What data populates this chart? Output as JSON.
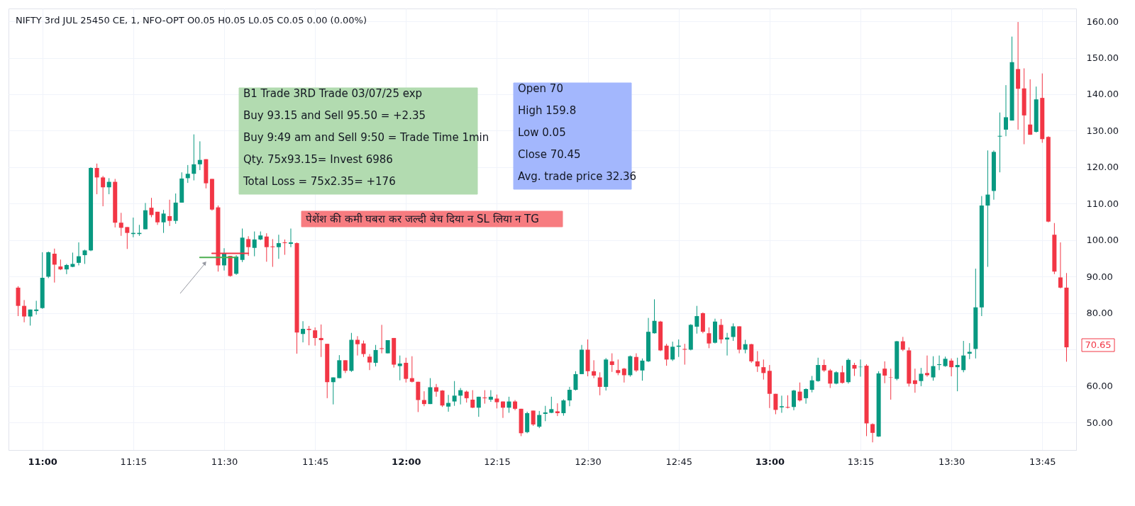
{
  "chart_data": {
    "type": "candlestick",
    "title": "NIFTY 3rd JUL 25450 CE, 1, NFO-OPT  O0.05 H0.05 L0.05 C0.05 0.00 (0.00%)",
    "x": [
      "--07-03T10:56",
      "--07-03T10:57",
      "--07-03T10:58",
      "--07-03T10:59",
      "--07-03T11:00",
      "--07-03T11:01",
      "--07-03T11:02",
      "--07-03T11:03",
      "--07-03T11:04",
      "--07-03T11:05",
      "--07-03T11:06",
      "--07-03T11:07",
      "--07-03T11:08",
      "--07-03T11:09",
      "--07-03T11:10",
      "--07-03T11:11",
      "--07-03T11:12",
      "--07-03T11:13",
      "--07-03T11:14",
      "--07-03T11:15",
      "--07-03T11:16",
      "--07-03T11:17",
      "--07-03T11:18",
      "--07-03T11:19",
      "--07-03T11:20",
      "--07-03T11:21",
      "--07-03T11:22",
      "--07-03T11:23",
      "--07-03T11:24",
      "--07-03T11:25",
      "--07-03T11:26",
      "--07-03T11:27",
      "--07-03T11:28",
      "--07-03T11:29",
      "--07-03T11:30",
      "--07-03T11:31",
      "--07-03T11:32",
      "--07-03T11:33",
      "--07-03T11:34",
      "--07-03T11:35",
      "--07-03T11:36",
      "--07-03T11:37",
      "--07-03T11:38",
      "--07-03T11:39",
      "--07-03T11:40",
      "--07-03T11:41",
      "--07-03T11:42",
      "--07-03T11:43",
      "--07-03T11:44",
      "--07-03T11:45",
      "--07-03T11:46",
      "--07-03T11:47",
      "--07-03T11:48",
      "--07-03T11:49",
      "--07-03T11:50",
      "--07-03T11:51",
      "--07-03T11:52",
      "--07-03T11:53",
      "--07-03T11:54",
      "--07-03T11:55",
      "--07-03T11:56",
      "--07-03T11:57",
      "--07-03T11:58",
      "--07-03T11:59",
      "--07-03T12:00",
      "--07-03T12:01",
      "--07-03T12:02",
      "--07-03T12:03",
      "--07-03T12:04",
      "--07-03T12:05",
      "--07-03T12:06",
      "--07-03T12:07",
      "--07-03T12:08",
      "--07-03T12:09",
      "--07-03T12:10",
      "--07-03T12:11",
      "--07-03T12:12",
      "--07-03T12:13",
      "--07-03T12:14",
      "--07-03T12:15",
      "--07-03T12:16",
      "--07-03T12:17",
      "--07-03T12:18",
      "--07-03T12:19",
      "--07-03T12:20",
      "--07-03T12:21",
      "--07-03T12:22",
      "--07-03T12:23",
      "--07-03T12:24",
      "--07-03T12:25",
      "--07-03T12:26",
      "--07-03T12:27",
      "--07-03T12:28",
      "--07-03T12:29",
      "--07-03T12:30",
      "--07-03T12:31",
      "--07-03T12:32",
      "--07-03T12:33",
      "--07-03T12:34",
      "--07-03T12:35",
      "--07-03T12:36",
      "--07-03T12:37",
      "--07-03T12:38",
      "--07-03T12:39",
      "--07-03T12:40",
      "--07-03T12:41",
      "--07-03T12:42",
      "--07-03T12:43",
      "--07-03T12:44",
      "--07-03T12:45",
      "--07-03T12:46",
      "--07-03T12:47",
      "--07-03T12:48",
      "--07-03T12:49",
      "--07-03T12:50",
      "--07-03T12:51",
      "--07-03T12:52",
      "--07-03T12:53",
      "--07-03T12:54",
      "--07-03T12:55",
      "--07-03T12:56",
      "--07-03T12:57",
      "--07-03T12:58",
      "--07-03T12:59",
      "--07-03T13:00",
      "--07-03T13:01",
      "--07-03T13:02",
      "--07-03T13:03",
      "--07-03T13:04",
      "--07-03T13:05",
      "--07-03T13:06",
      "--07-03T13:07",
      "--07-03T13:08",
      "--07-03T13:09",
      "--07-03T13:10",
      "--07-03T13:11",
      "--07-03T13:12",
      "--07-03T13:13",
      "--07-03T13:14",
      "--07-03T13:15",
      "--07-03T13:16",
      "--07-03T13:17",
      "--07-03T13:18",
      "--07-03T13:19",
      "--07-03T13:20",
      "--07-03T13:21",
      "--07-03T13:22",
      "--07-03T13:23",
      "--07-03T13:24",
      "--07-03T13:25",
      "--07-03T13:26",
      "--07-03T13:27",
      "--07-03T13:28",
      "--07-03T13:29",
      "--07-03T13:30",
      "--07-03T13:31",
      "--07-03T13:32",
      "--07-03T13:33",
      "--07-03T13:34",
      "--07-03T13:35",
      "--07-03T13:36",
      "--07-03T13:37",
      "--07-03T13:38",
      "--07-03T13:39",
      "--07-03T13:40",
      "--07-03T13:41",
      "--07-03T13:42",
      "--07-03T13:43",
      "--07-03T13:44",
      "--07-03T13:45",
      "--07-03T13:46",
      "--07-03T13:47",
      "--07-03T13:48",
      "--07-03T13:49"
    ],
    "ohlc": [
      [
        87.0,
        87.4,
        79.2,
        82.0
      ],
      [
        82.0,
        83.6,
        77.5,
        79.1
      ],
      [
        79.1,
        81.0,
        76.6,
        81.0
      ],
      [
        80.6,
        83.4,
        79.6,
        81.0
      ],
      [
        81.4,
        96.7,
        81.2,
        89.7
      ],
      [
        90.0,
        96.9,
        89.6,
        96.7
      ],
      [
        96.3,
        97.7,
        88.4,
        93.3
      ],
      [
        92.8,
        94.7,
        91.8,
        92.0
      ],
      [
        92.0,
        93.5,
        90.7,
        93.2
      ],
      [
        92.7,
        96.6,
        92.6,
        93.5
      ],
      [
        93.8,
        99.4,
        93.1,
        95.6
      ],
      [
        95.9,
        97.4,
        93.5,
        97.2
      ],
      [
        97.2,
        120.0,
        97.0,
        119.8
      ],
      [
        119.8,
        121.0,
        112.6,
        117.2
      ],
      [
        117.2,
        117.6,
        109.3,
        114.5
      ],
      [
        114.5,
        117.0,
        112.6,
        116.0
      ],
      [
        116.0,
        116.8,
        103.5,
        104.8
      ],
      [
        104.8,
        107.5,
        101.2,
        103.4
      ],
      [
        103.6,
        103.6,
        97.6,
        102.0
      ],
      [
        101.7,
        106.2,
        100.8,
        102.0
      ],
      [
        101.7,
        104.2,
        101.2,
        102.0
      ],
      [
        103.0,
        110.2,
        103.0,
        108.2
      ],
      [
        108.9,
        111.6,
        106.3,
        106.9
      ],
      [
        107.8,
        107.8,
        104.2,
        104.9
      ],
      [
        104.9,
        108.3,
        102.0,
        107.3
      ],
      [
        106.6,
        111.1,
        103.9,
        105.3
      ],
      [
        105.3,
        112.8,
        104.5,
        110.3
      ],
      [
        110.3,
        118.6,
        110.3,
        116.9
      ],
      [
        117.0,
        120.6,
        115.7,
        118.2
      ],
      [
        118.2,
        129.0,
        116.4,
        120.8
      ],
      [
        120.8,
        127.1,
        119.2,
        122.0
      ],
      [
        122.2,
        122.2,
        114.2,
        115.6
      ],
      [
        116.8,
        116.8,
        108.1,
        108.4
      ],
      [
        109.0,
        109.5,
        91.4,
        93.1
      ],
      [
        93.1,
        97.8,
        91.7,
        96.5
      ],
      [
        95.7,
        95.7,
        90.0,
        90.2
      ],
      [
        90.8,
        95.9,
        90.5,
        95.5
      ],
      [
        94.6,
        103.2,
        94.0,
        100.7
      ],
      [
        100.3,
        101.1,
        95.7,
        98.1
      ],
      [
        97.9,
        102.4,
        95.6,
        100.2
      ],
      [
        100.2,
        102.4,
        100.0,
        101.3
      ],
      [
        101.0,
        101.9,
        94.1,
        98.1
      ],
      [
        98.3,
        100.3,
        92.7,
        98.1
      ],
      [
        98.1,
        101.5,
        94.9,
        99.2
      ],
      [
        99.4,
        100.2,
        96.0,
        99.2
      ],
      [
        99.0,
        103.2,
        98.1,
        99.4
      ],
      [
        99.2,
        99.4,
        68.9,
        74.7
      ],
      [
        74.3,
        77.8,
        72.0,
        75.7
      ],
      [
        75.7,
        76.5,
        71.2,
        75.4
      ],
      [
        75.3,
        76.1,
        71.1,
        73.2
      ],
      [
        73.2,
        76.9,
        68.0,
        72.6
      ],
      [
        71.6,
        71.6,
        56.7,
        61.1
      ],
      [
        61.1,
        62.4,
        55.0,
        62.4
      ],
      [
        62.2,
        68.5,
        62.2,
        67.1
      ],
      [
        67.1,
        67.1,
        63.6,
        64.2
      ],
      [
        64.2,
        74.6,
        63.9,
        72.7
      ],
      [
        72.7,
        73.7,
        68.4,
        71.5
      ],
      [
        71.7,
        72.5,
        68.0,
        68.8
      ],
      [
        68.1,
        68.8,
        64.4,
        66.5
      ],
      [
        66.4,
        71.3,
        65.4,
        69.9
      ],
      [
        70.4,
        76.8,
        69.0,
        70.2
      ],
      [
        69.0,
        72.6,
        69.0,
        72.6
      ],
      [
        73.2,
        73.2,
        65.1,
        65.9
      ],
      [
        65.5,
        68.4,
        61.6,
        66.2
      ],
      [
        66.4,
        67.8,
        61.0,
        62.0
      ],
      [
        62.2,
        68.2,
        61.0,
        61.2
      ],
      [
        61.2,
        61.2,
        52.9,
        56.2
      ],
      [
        56.2,
        58.6,
        54.5,
        55.1
      ],
      [
        55.1,
        62.2,
        55.1,
        59.7
      ],
      [
        59.7,
        60.6,
        57.1,
        58.5
      ],
      [
        58.8,
        58.9,
        54.3,
        54.7
      ],
      [
        54.4,
        57.6,
        53.0,
        55.4
      ],
      [
        55.8,
        61.4,
        54.6,
        57.4
      ],
      [
        57.4,
        59.5,
        55.0,
        58.9
      ],
      [
        58.5,
        58.8,
        55.5,
        56.7
      ],
      [
        56.3,
        58.9,
        54.0,
        54.1
      ],
      [
        54.1,
        57.1,
        51.6,
        57.1
      ],
      [
        56.9,
        58.9,
        55.2,
        56.7
      ],
      [
        56.3,
        58.9,
        55.7,
        57.1
      ],
      [
        56.6,
        57.7,
        53.9,
        55.6
      ],
      [
        55.8,
        55.8,
        51.3,
        54.1
      ],
      [
        54.1,
        57.1,
        52.7,
        55.8
      ],
      [
        55.8,
        56.2,
        53.4,
        53.8
      ],
      [
        53.8,
        53.8,
        46.3,
        47.1
      ],
      [
        47.4,
        53.0,
        47.1,
        52.6
      ],
      [
        53.3,
        53.3,
        49.1,
        49.5
      ],
      [
        48.9,
        53.2,
        48.5,
        52.1
      ],
      [
        52.4,
        54.6,
        50.4,
        52.8
      ],
      [
        52.7,
        57.1,
        52.6,
        53.7
      ],
      [
        53.1,
        55.3,
        51.8,
        52.6
      ],
      [
        52.6,
        56.4,
        51.9,
        56.1
      ],
      [
        56.1,
        59.8,
        54.5,
        59.0
      ],
      [
        59.0,
        64.1,
        58.8,
        63.3
      ],
      [
        63.3,
        71.3,
        63.3,
        70.0
      ],
      [
        70.0,
        72.8,
        62.7,
        64.1
      ],
      [
        64.1,
        67.1,
        62.2,
        62.9
      ],
      [
        62.4,
        63.8,
        57.5,
        59.8
      ],
      [
        59.8,
        67.7,
        58.8,
        67.3
      ],
      [
        66.8,
        69.0,
        63.9,
        65.8
      ],
      [
        64.4,
        67.3,
        63.0,
        63.6
      ],
      [
        64.8,
        65.0,
        61.0,
        63.0
      ],
      [
        63.0,
        68.4,
        62.6,
        68.2
      ],
      [
        68.0,
        69.0,
        63.9,
        64.3
      ],
      [
        64.3,
        67.6,
        61.5,
        67.0
      ],
      [
        66.8,
        78.7,
        66.6,
        74.9
      ],
      [
        74.5,
        83.8,
        74.4,
        77.9
      ],
      [
        77.7,
        77.9,
        69.6,
        69.8
      ],
      [
        71.1,
        71.6,
        65.6,
        67.3
      ],
      [
        67.3,
        72.2,
        66.9,
        70.8
      ],
      [
        70.8,
        72.8,
        68.0,
        71.1
      ],
      [
        70.2,
        71.6,
        65.9,
        70.0
      ],
      [
        70.0,
        77.0,
        69.8,
        76.8
      ],
      [
        76.3,
        82.0,
        74.4,
        79.2
      ],
      [
        80.0,
        80.2,
        74.5,
        74.9
      ],
      [
        74.5,
        76.1,
        70.4,
        71.7
      ],
      [
        71.9,
        78.5,
        71.7,
        77.7
      ],
      [
        76.8,
        78.4,
        71.7,
        72.8
      ],
      [
        72.8,
        74.6,
        68.4,
        73.3
      ],
      [
        73.5,
        77.2,
        72.4,
        76.4
      ],
      [
        76.4,
        76.4,
        69.0,
        70.0
      ],
      [
        70.0,
        72.7,
        69.0,
        71.5
      ],
      [
        71.5,
        71.6,
        66.4,
        66.8
      ],
      [
        66.8,
        69.6,
        63.9,
        65.4
      ],
      [
        65.2,
        67.3,
        61.8,
        63.6
      ],
      [
        64.2,
        65.8,
        54.0,
        57.9
      ],
      [
        57.9,
        57.9,
        52.3,
        53.5
      ],
      [
        54.2,
        57.4,
        52.7,
        54.5
      ],
      [
        54.3,
        57.5,
        53.9,
        54.1
      ],
      [
        54.3,
        59.0,
        53.4,
        58.8
      ],
      [
        58.5,
        61.0,
        55.8,
        56.1
      ],
      [
        56.7,
        59.4,
        55.2,
        59.2
      ],
      [
        59.0,
        62.8,
        58.3,
        61.6
      ],
      [
        61.4,
        67.8,
        61.2,
        65.8
      ],
      [
        65.8,
        67.3,
        63.9,
        64.3
      ],
      [
        64.3,
        64.7,
        59.5,
        60.7
      ],
      [
        60.7,
        64.1,
        60.5,
        63.8
      ],
      [
        63.8,
        65.6,
        60.7,
        60.9
      ],
      [
        61.1,
        67.6,
        60.7,
        67.2
      ],
      [
        65.8,
        66.4,
        62.8,
        64.8
      ],
      [
        65.2,
        67.3,
        62.6,
        65.3
      ],
      [
        65.6,
        66.0,
        46.3,
        49.8
      ],
      [
        49.6,
        49.8,
        44.6,
        47.2
      ],
      [
        46.2,
        64.1,
        46.1,
        63.5
      ],
      [
        64.8,
        66.8,
        60.8,
        62.9
      ],
      [
        62.4,
        64.8,
        56.3,
        62.3
      ],
      [
        62.0,
        72.4,
        61.6,
        72.3
      ],
      [
        72.3,
        73.5,
        69.6,
        70.0
      ],
      [
        69.8,
        70.6,
        59.9,
        60.7
      ],
      [
        61.6,
        64.8,
        58.2,
        60.6
      ],
      [
        61.4,
        65.0,
        60.0,
        63.4
      ],
      [
        63.6,
        68.4,
        62.6,
        63.0
      ],
      [
        62.4,
        68.2,
        61.5,
        65.5
      ],
      [
        65.8,
        68.4,
        64.4,
        66.0
      ],
      [
        65.5,
        68.1,
        65.3,
        67.5
      ],
      [
        67.0,
        67.6,
        62.7,
        65.2
      ],
      [
        65.2,
        67.8,
        58.6,
        65.8
      ],
      [
        64.4,
        72.4,
        63.8,
        68.4
      ],
      [
        68.9,
        71.8,
        67.4,
        69.4
      ],
      [
        70.2,
        92.2,
        67.6,
        81.6
      ],
      [
        81.6,
        112.1,
        79.2,
        109.5
      ],
      [
        109.5,
        124.6,
        92.7,
        112.5
      ],
      [
        113.5,
        124.6,
        111.1,
        124.2
      ],
      [
        128.4,
        135.0,
        118.6,
        128.6
      ],
      [
        130.3,
        142.5,
        128.5,
        133.7
      ],
      [
        132.8,
        155.8,
        132.8,
        148.8
      ],
      [
        146.9,
        159.8,
        130.3,
        141.5
      ],
      [
        141.6,
        147.1,
        126.3,
        134.2
      ],
      [
        131.7,
        144.1,
        128.9,
        128.9
      ],
      [
        129.7,
        142.1,
        129.5,
        138.6
      ],
      [
        139.0,
        145.7,
        126.7,
        127.7
      ],
      [
        128.3,
        128.5,
        104.9,
        105.1
      ],
      [
        101.5,
        104.7,
        90.7,
        91.4
      ],
      [
        89.8,
        99.4,
        86.8,
        87.0
      ],
      [
        87.0,
        91.0,
        66.7,
        70.65
      ]
    ],
    "colors": [
      "#f23645",
      "#f23645",
      "#089981",
      "#089981",
      "#089981",
      "#089981",
      "#f23645",
      "#f23645",
      "#089981",
      "#089981",
      "#089981",
      "#089981",
      "#089981",
      "#f23645",
      "#f23645",
      "#089981",
      "#f23645",
      "#f23645",
      "#f23645",
      "#089981",
      "#089981",
      "#089981",
      "#f23645",
      "#f23645",
      "#089981",
      "#f23645",
      "#089981",
      "#089981",
      "#089981",
      "#089981",
      "#089981",
      "#f23645",
      "#f23645",
      "#f23645",
      "#089981",
      "#f23645",
      "#089981",
      "#089981",
      "#f23645",
      "#089981",
      "#089981",
      "#f23645",
      "#f23645",
      "#089981",
      "#f23645",
      "#089981",
      "#f23645",
      "#089981",
      "#f23645",
      "#f23645",
      "#f23645",
      "#f23645",
      "#089981",
      "#089981",
      "#f23645",
      "#089981",
      "#f23645",
      "#f23645",
      "#f23645",
      "#089981",
      "#f23645",
      "#089981",
      "#f23645",
      "#089981",
      "#f23645",
      "#f23645",
      "#f23645",
      "#f23645",
      "#089981",
      "#f23645",
      "#f23645",
      "#089981",
      "#089981",
      "#089981",
      "#f23645",
      "#f23645",
      "#089981",
      "#f23645",
      "#089981",
      "#f23645",
      "#f23645",
      "#089981",
      "#f23645",
      "#f23645",
      "#089981",
      "#f23645",
      "#089981",
      "#089981",
      "#089981",
      "#f23645",
      "#089981",
      "#089981",
      "#089981",
      "#089981",
      "#f23645",
      "#f23645",
      "#f23645",
      "#089981",
      "#f23645",
      "#f23645",
      "#f23645",
      "#089981",
      "#f23645",
      "#089981",
      "#089981",
      "#089981",
      "#f23645",
      "#f23645",
      "#089981",
      "#089981",
      "#f23645",
      "#089981",
      "#089981",
      "#f23645",
      "#f23645",
      "#089981",
      "#f23645",
      "#089981",
      "#089981",
      "#f23645",
      "#089981",
      "#f23645",
      "#f23645",
      "#f23645",
      "#f23645",
      "#f23645",
      "#089981",
      "#f23645",
      "#089981",
      "#f23645",
      "#089981",
      "#089981",
      "#089981",
      "#f23645",
      "#f23645",
      "#089981",
      "#f23645",
      "#089981",
      "#f23645",
      "#089981",
      "#f23645",
      "#f23645",
      "#089981",
      "#f23645",
      "#f23645",
      "#089981",
      "#f23645",
      "#f23645",
      "#f23645",
      "#089981",
      "#f23645",
      "#089981",
      "#089981",
      "#089981",
      "#f23645",
      "#089981",
      "#089981",
      "#089981",
      "#089981",
      "#089981",
      "#089981",
      "#089981",
      "#089981",
      "#089981",
      "#089981",
      "#f23645",
      "#f23645",
      "#f23645",
      "#089981",
      "#f23645",
      "#f23645",
      "#f23645",
      "#f23645",
      "#f23645"
    ],
    "series": [
      {
        "type": "line",
        "x": [
          "--07-03T11:26",
          "--07-03T11:32"
        ],
        "values": [
          95.3,
          95.3
        ],
        "color": "#4caf50"
      },
      {
        "type": "line",
        "x": [
          "--07-03T11:28",
          "--07-03T11:34"
        ],
        "values": [
          96.4,
          96.4
        ],
        "color": "#f23645"
      }
    ],
    "xlim": [
      "--07-03T10:55",
      "--07-03T13:50"
    ],
    "xticks": [
      {
        "value": "--07-03T11:00",
        "label": "11:00"
      },
      {
        "value": "--07-03T11:15",
        "label": "11:15"
      },
      {
        "value": "--07-03T11:30",
        "label": "11:30"
      },
      {
        "value": "--07-03T11:45",
        "label": "11:45"
      },
      {
        "value": "--07-03T12:00",
        "label": "12:00"
      },
      {
        "value": "--07-03T12:15",
        "label": "12:15"
      },
      {
        "value": "--07-03T12:30",
        "label": "12:30"
      },
      {
        "value": "--07-03T12:45",
        "label": "12:45"
      },
      {
        "value": "--07-03T13:00",
        "label": "13:00"
      },
      {
        "value": "--07-03T13:15",
        "label": "13:15"
      },
      {
        "value": "--07-03T13:30",
        "label": "13:30"
      },
      {
        "value": "--07-03T13:45",
        "label": "13:45"
      }
    ],
    "ylim": [
      42.5,
      163.5
    ],
    "yticks": [
      {
        "value": 50,
        "label": "50.00"
      },
      {
        "value": 60,
        "label": "60.00"
      },
      {
        "value": 70,
        "label": null
      },
      {
        "value": 80,
        "label": "80.00"
      },
      {
        "value": 90,
        "label": "90.00"
      },
      {
        "value": 100,
        "label": "100.00"
      },
      {
        "value": 110,
        "label": "110.00"
      },
      {
        "value": 120,
        "label": "120.00"
      },
      {
        "value": 130,
        "label": "130.00"
      },
      {
        "value": 140,
        "label": "140.00"
      },
      {
        "value": 150,
        "label": "150.00"
      },
      {
        "value": 160,
        "label": "160.00"
      }
    ],
    "grid": true,
    "annotations": [
      "B1 Trade  3RD Trade 03/07/25  exp\nBuy 93.15 and Sell 95.50 =  +2.35\nBuy 9:49 am and Sell 9:50 = Trade Time 1min\nQty. 75x93.15= Invest 6986\nTotal Loss = 75x2.35= +176",
      "Open 70\nHigh 159.8\nLow 0.05\nClose 70.45\nAvg. trade price 32.36",
      "पेशेंश की कमी घबरा कर जल्दी बेच दिया न SL लिया न TG",
      "70.65"
    ]
  }
}
